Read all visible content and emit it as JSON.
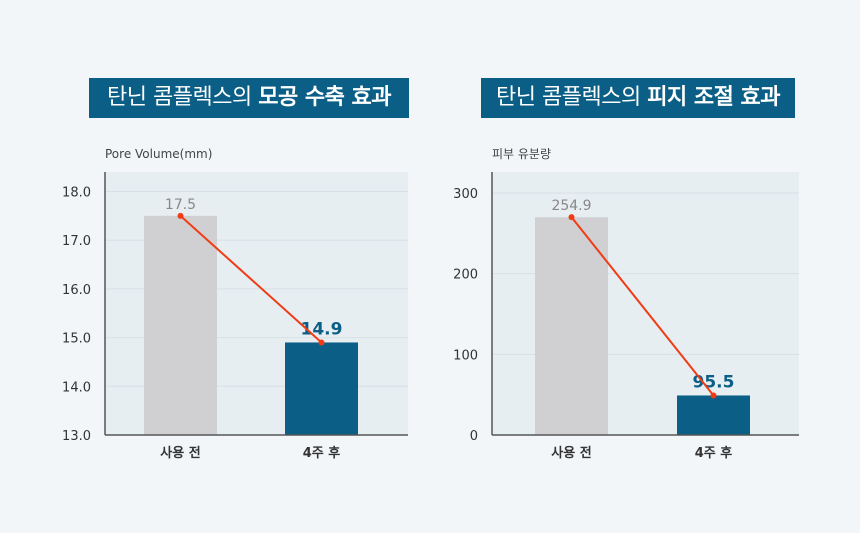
{
  "chart_data": [
    {
      "type": "bar",
      "title_regular": "탄닌 콤플렉스의",
      "title_bold": "모공 수축 효과",
      "ylabel": "Pore Volume(mm)",
      "xlabel": "",
      "categories": [
        "사용 전",
        "4주 후"
      ],
      "values": [
        17.5,
        14.9
      ],
      "value_labels": [
        "17.5",
        "14.9"
      ],
      "ylim": [
        13.0,
        18.4
      ],
      "yticks": [
        "13.0",
        "14.0",
        "15.0",
        "16.0",
        "17.0",
        "18.0"
      ],
      "ytick_values": [
        13,
        14,
        15,
        16,
        17,
        18
      ],
      "trend_line": true,
      "grid": true,
      "colors": {
        "before": "#d0d0d2",
        "after": "#0b5e85",
        "line": "#f03c14",
        "value_before": "#888888",
        "value_after": "#0b5e85"
      }
    },
    {
      "type": "bar",
      "title_regular": "탄닌 콤플렉스의",
      "title_bold": "피지 조절 효과",
      "ylabel": "피부 유분량",
      "xlabel": "",
      "categories": [
        "사용 전",
        "4주 후"
      ],
      "values": [
        254.9,
        95.5
      ],
      "drawn_heights": [
        270,
        49
      ],
      "value_labels": [
        "254.9",
        "95.5"
      ],
      "ylim": [
        0,
        326
      ],
      "yticks": [
        "0",
        "100",
        "200",
        "300"
      ],
      "ytick_values": [
        0,
        100,
        200,
        300
      ],
      "trend_line": true,
      "grid": true,
      "colors": {
        "before": "#d0d0d2",
        "after": "#0b5e85",
        "line": "#f03c14",
        "value_before": "#888888",
        "value_after": "#0b5e85"
      }
    }
  ]
}
